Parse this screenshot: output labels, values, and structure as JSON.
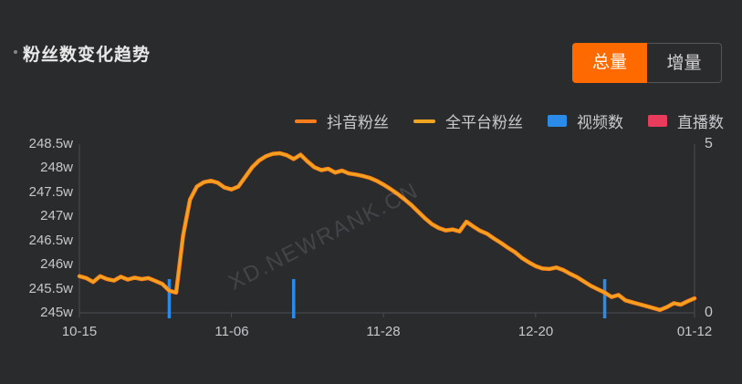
{
  "header": {
    "title": "粉丝数变化趋势"
  },
  "toggle": {
    "total": "总量",
    "delta": "增量",
    "active": "总量",
    "active_color": "#ff6a00"
  },
  "legend": [
    {
      "label": "抖音粉丝",
      "marker": "line",
      "color": "#ff7d1a"
    },
    {
      "label": "全平台粉丝",
      "marker": "line",
      "color": "#f0a41f"
    },
    {
      "label": "视频数",
      "marker": "rect",
      "color": "#2a8be8"
    },
    {
      "label": "直播数",
      "marker": "rect",
      "color": "#e93b5c"
    }
  ],
  "watermark": "XD.NEWRANK.CN",
  "chart_data": {
    "type": "line+bar",
    "title": "粉丝数变化趋势",
    "grid": false,
    "legend_position": "top",
    "x": {
      "tick_labels": [
        "10-15",
        "11-06",
        "11-28",
        "12-20",
        "01-12"
      ],
      "tick_days": [
        0,
        22,
        44,
        66,
        89
      ],
      "total_days": 89
    },
    "y_left": {
      "tick_labels": [
        "248.5w",
        "248w",
        "247.5w",
        "247w",
        "246.5w",
        "246w",
        "245.5w",
        "245w"
      ],
      "min": 245,
      "max": 248.5,
      "unit": "w"
    },
    "y_right": {
      "tick_labels": [
        "5",
        "0"
      ],
      "min": 0,
      "max": 5
    },
    "series": [
      {
        "name": "抖音粉丝",
        "type": "line",
        "color": "#ff7d1a",
        "unit": "w",
        "values": [
          245.76,
          245.72,
          245.64,
          245.76,
          245.7,
          245.67,
          245.75,
          245.69,
          245.73,
          245.7,
          245.72,
          245.66,
          245.6,
          245.46,
          245.42,
          246.6,
          247.35,
          247.62,
          247.71,
          247.74,
          247.7,
          247.6,
          247.56,
          247.62,
          247.82,
          248.02,
          248.16,
          248.25,
          248.3,
          248.31,
          248.27,
          248.19,
          248.28,
          248.14,
          248.02,
          247.96,
          247.99,
          247.91,
          247.95,
          247.89,
          247.87,
          247.84,
          247.8,
          247.74,
          247.66,
          247.57,
          247.47,
          247.36,
          247.24,
          247.1,
          246.96,
          246.84,
          246.76,
          246.71,
          246.73,
          246.69,
          246.89,
          246.79,
          246.7,
          246.64,
          246.54,
          246.45,
          246.35,
          246.26,
          246.14,
          246.05,
          245.97,
          245.92,
          245.91,
          245.94,
          245.89,
          245.81,
          245.74,
          245.65,
          245.56,
          245.49,
          245.42,
          245.33,
          245.37,
          245.26,
          245.22,
          245.18,
          245.14,
          245.1,
          245.06,
          245.12,
          245.2,
          245.17,
          245.24,
          245.3
        ]
      },
      {
        "name": "全平台粉丝",
        "type": "line",
        "color": "#f0a41f",
        "unit": "w",
        "values": [
          245.76,
          245.72,
          245.64,
          245.76,
          245.7,
          245.67,
          245.75,
          245.69,
          245.73,
          245.7,
          245.72,
          245.66,
          245.6,
          245.46,
          245.42,
          246.6,
          247.35,
          247.62,
          247.71,
          247.74,
          247.7,
          247.6,
          247.56,
          247.62,
          247.82,
          248.02,
          248.16,
          248.25,
          248.3,
          248.31,
          248.27,
          248.19,
          248.28,
          248.14,
          248.02,
          247.96,
          247.99,
          247.91,
          247.95,
          247.89,
          247.87,
          247.84,
          247.8,
          247.74,
          247.66,
          247.57,
          247.47,
          247.36,
          247.24,
          247.1,
          246.96,
          246.84,
          246.76,
          246.71,
          246.73,
          246.69,
          246.89,
          246.79,
          246.7,
          246.64,
          246.54,
          246.45,
          246.35,
          246.26,
          246.14,
          246.05,
          245.97,
          245.92,
          245.91,
          245.94,
          245.89,
          245.81,
          245.74,
          245.65,
          245.56,
          245.49,
          245.42,
          245.33,
          245.37,
          245.26,
          245.22,
          245.18,
          245.14,
          245.1,
          245.06,
          245.12,
          245.2,
          245.17,
          245.24,
          245.3
        ]
      },
      {
        "name": "视频数",
        "type": "bar",
        "color": "#2a8be8",
        "points": [
          {
            "day": 13,
            "value": 1
          },
          {
            "day": 31,
            "value": 1
          },
          {
            "day": 76,
            "value": 1
          }
        ]
      },
      {
        "name": "直播数",
        "type": "bar",
        "color": "#e93b5c",
        "points": []
      }
    ]
  }
}
